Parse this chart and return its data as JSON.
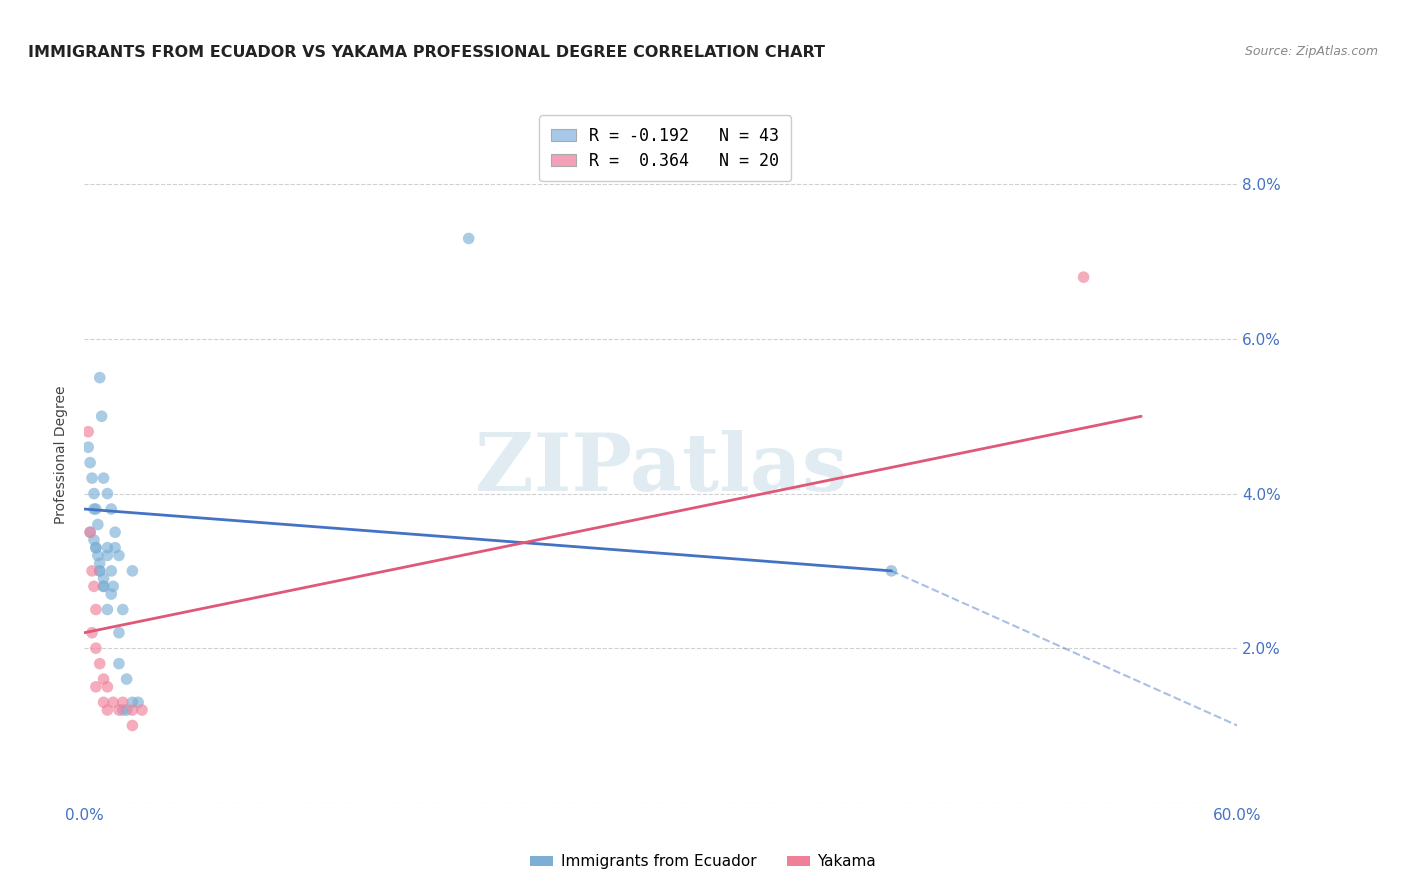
{
  "title": "IMMIGRANTS FROM ECUADOR VS YAKAMA PROFESSIONAL DEGREE CORRELATION CHART",
  "source": "Source: ZipAtlas.com",
  "ylabel": "Professional Degree",
  "xlim": [
    0,
    0.6
  ],
  "ylim": [
    0,
    0.09
  ],
  "yticks": [
    0.0,
    0.02,
    0.04,
    0.06,
    0.08
  ],
  "ytick_labels": [
    "",
    "2.0%",
    "4.0%",
    "6.0%",
    "8.0%"
  ],
  "xticks": [
    0.0,
    0.1,
    0.2,
    0.3,
    0.4,
    0.5,
    0.6
  ],
  "xtick_labels": [
    "0.0%",
    "",
    "",
    "",
    "",
    "",
    "60.0%"
  ],
  "legend_entries": [
    {
      "label": "R = -0.192   N = 43",
      "color": "#a8c8e8"
    },
    {
      "label": "R =  0.364   N = 20",
      "color": "#f4a0b8"
    }
  ],
  "blue_scatter_x": [
    0.002,
    0.003,
    0.004,
    0.005,
    0.006,
    0.003,
    0.005,
    0.006,
    0.007,
    0.008,
    0.005,
    0.007,
    0.008,
    0.009,
    0.01,
    0.006,
    0.008,
    0.01,
    0.012,
    0.014,
    0.008,
    0.01,
    0.012,
    0.014,
    0.016,
    0.01,
    0.012,
    0.014,
    0.016,
    0.018,
    0.012,
    0.015,
    0.018,
    0.02,
    0.025,
    0.018,
    0.022,
    0.025,
    0.028,
    0.42,
    0.02,
    0.022,
    0.2
  ],
  "blue_scatter_y": [
    0.046,
    0.044,
    0.042,
    0.04,
    0.038,
    0.035,
    0.034,
    0.033,
    0.032,
    0.03,
    0.038,
    0.036,
    0.055,
    0.05,
    0.042,
    0.033,
    0.031,
    0.029,
    0.04,
    0.038,
    0.03,
    0.028,
    0.033,
    0.03,
    0.035,
    0.028,
    0.032,
    0.027,
    0.033,
    0.032,
    0.025,
    0.028,
    0.022,
    0.025,
    0.03,
    0.018,
    0.016,
    0.013,
    0.013,
    0.03,
    0.012,
    0.012,
    0.073
  ],
  "pink_scatter_x": [
    0.002,
    0.003,
    0.004,
    0.005,
    0.006,
    0.004,
    0.006,
    0.008,
    0.01,
    0.012,
    0.006,
    0.01,
    0.015,
    0.02,
    0.025,
    0.03,
    0.012,
    0.018,
    0.025,
    0.52
  ],
  "pink_scatter_y": [
    0.048,
    0.035,
    0.03,
    0.028,
    0.025,
    0.022,
    0.02,
    0.018,
    0.016,
    0.015,
    0.015,
    0.013,
    0.013,
    0.013,
    0.012,
    0.012,
    0.012,
    0.012,
    0.01,
    0.068
  ],
  "blue_line_solid": {
    "x0": 0.0,
    "y0": 0.038,
    "x1": 0.42,
    "y1": 0.03
  },
  "blue_line_dash": {
    "x0": 0.42,
    "y0": 0.03,
    "x1": 0.6,
    "y1": 0.01
  },
  "pink_line": {
    "x0": 0.0,
    "y0": 0.022,
    "x1": 0.55,
    "y1": 0.05
  },
  "blue_scatter_color": "#7bafd4",
  "pink_scatter_color": "#f08098",
  "blue_line_color": "#4472c4",
  "pink_line_color": "#e05878",
  "grid_color": "#d0d0d0",
  "background_color": "#ffffff",
  "title_fontsize": 11.5,
  "axis_label_fontsize": 10,
  "tick_fontsize": 11,
  "scatter_size": 70,
  "watermark_text": "ZIPatlas",
  "watermark_color": "#c8dce8"
}
